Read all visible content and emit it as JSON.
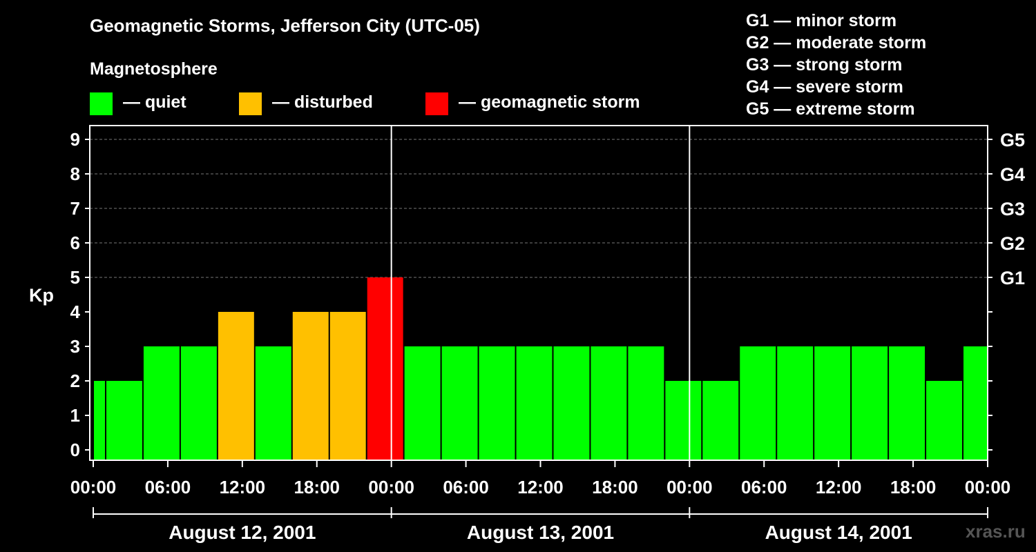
{
  "chart_data": {
    "type": "bar",
    "title": "Geomagnetic Storms, Jefferson City (UTC-05)",
    "ylabel": "Kp",
    "xlabel": "",
    "ylim": [
      0,
      9
    ],
    "yticks": [
      "0",
      "1",
      "2",
      "3",
      "4",
      "5",
      "6",
      "7",
      "8",
      "9"
    ],
    "right_ticks": [
      {
        "kp": 5,
        "label": "G1"
      },
      {
        "kp": 6,
        "label": "G2"
      },
      {
        "kp": 7,
        "label": "G3"
      },
      {
        "kp": 8,
        "label": "G4"
      },
      {
        "kp": 9,
        "label": "G5"
      }
    ],
    "x_hours_range": [
      0,
      72
    ],
    "x_tick_hours": [
      0,
      6,
      12,
      18,
      24,
      30,
      36,
      42,
      48,
      54,
      60,
      66,
      72
    ],
    "x_tick_labels": [
      "00:00",
      "06:00",
      "12:00",
      "18:00",
      "00:00",
      "06:00",
      "12:00",
      "18:00",
      "00:00",
      "06:00",
      "12:00",
      "18:00",
      "00:00"
    ],
    "day_separators_hours": [
      24,
      48
    ],
    "days": [
      {
        "label": "August 12, 2001",
        "start_hour": 0,
        "end_hour": 24
      },
      {
        "label": "August 13, 2001",
        "start_hour": 24,
        "end_hour": 48
      },
      {
        "label": "August 14, 2001",
        "start_hour": 48,
        "end_hour": 72
      }
    ],
    "bars": [
      {
        "start": 0,
        "end": 1,
        "kp": 2,
        "level": "quiet"
      },
      {
        "start": 1,
        "end": 4,
        "kp": 2,
        "level": "quiet"
      },
      {
        "start": 4,
        "end": 7,
        "kp": 3,
        "level": "quiet"
      },
      {
        "start": 7,
        "end": 10,
        "kp": 3,
        "level": "quiet"
      },
      {
        "start": 10,
        "end": 13,
        "kp": 4,
        "level": "disturbed"
      },
      {
        "start": 13,
        "end": 16,
        "kp": 3,
        "level": "quiet"
      },
      {
        "start": 16,
        "end": 19,
        "kp": 4,
        "level": "disturbed"
      },
      {
        "start": 19,
        "end": 22,
        "kp": 4,
        "level": "disturbed"
      },
      {
        "start": 22,
        "end": 25,
        "kp": 5,
        "level": "storm"
      },
      {
        "start": 25,
        "end": 28,
        "kp": 3,
        "level": "quiet"
      },
      {
        "start": 28,
        "end": 31,
        "kp": 3,
        "level": "quiet"
      },
      {
        "start": 31,
        "end": 34,
        "kp": 3,
        "level": "quiet"
      },
      {
        "start": 34,
        "end": 37,
        "kp": 3,
        "level": "quiet"
      },
      {
        "start": 37,
        "end": 40,
        "kp": 3,
        "level": "quiet"
      },
      {
        "start": 40,
        "end": 43,
        "kp": 3,
        "level": "quiet"
      },
      {
        "start": 43,
        "end": 46,
        "kp": 3,
        "level": "quiet"
      },
      {
        "start": 46,
        "end": 49,
        "kp": 2,
        "level": "quiet"
      },
      {
        "start": 49,
        "end": 52,
        "kp": 2,
        "level": "quiet"
      },
      {
        "start": 52,
        "end": 55,
        "kp": 3,
        "level": "quiet"
      },
      {
        "start": 55,
        "end": 58,
        "kp": 3,
        "level": "quiet"
      },
      {
        "start": 58,
        "end": 61,
        "kp": 3,
        "level": "quiet"
      },
      {
        "start": 61,
        "end": 64,
        "kp": 3,
        "level": "quiet"
      },
      {
        "start": 64,
        "end": 67,
        "kp": 3,
        "level": "quiet"
      },
      {
        "start": 67,
        "end": 70,
        "kp": 2,
        "level": "quiet"
      },
      {
        "start": 70,
        "end": 72,
        "kp": 3,
        "level": "quiet"
      }
    ],
    "grid": true
  },
  "colors": {
    "quiet": "#00ff00",
    "disturbed": "#ffc000",
    "storm": "#ff0000",
    "background": "#000000",
    "axis": "#ffffff",
    "grid": "#777777",
    "watermark": "#555555"
  },
  "legend": {
    "heading": "Magnetosphere",
    "items": [
      {
        "label": "— quiet",
        "color": "#00ff00"
      },
      {
        "label": "— disturbed",
        "color": "#ffc000"
      },
      {
        "label": "— geomagnetic storm",
        "color": "#ff0000"
      }
    ]
  },
  "storm_scale": [
    "G1 — minor storm",
    "G2 — moderate storm",
    "G3 — strong storm",
    "G4 — severe storm",
    "G5 — extreme storm"
  ],
  "watermark": "xras.ru"
}
